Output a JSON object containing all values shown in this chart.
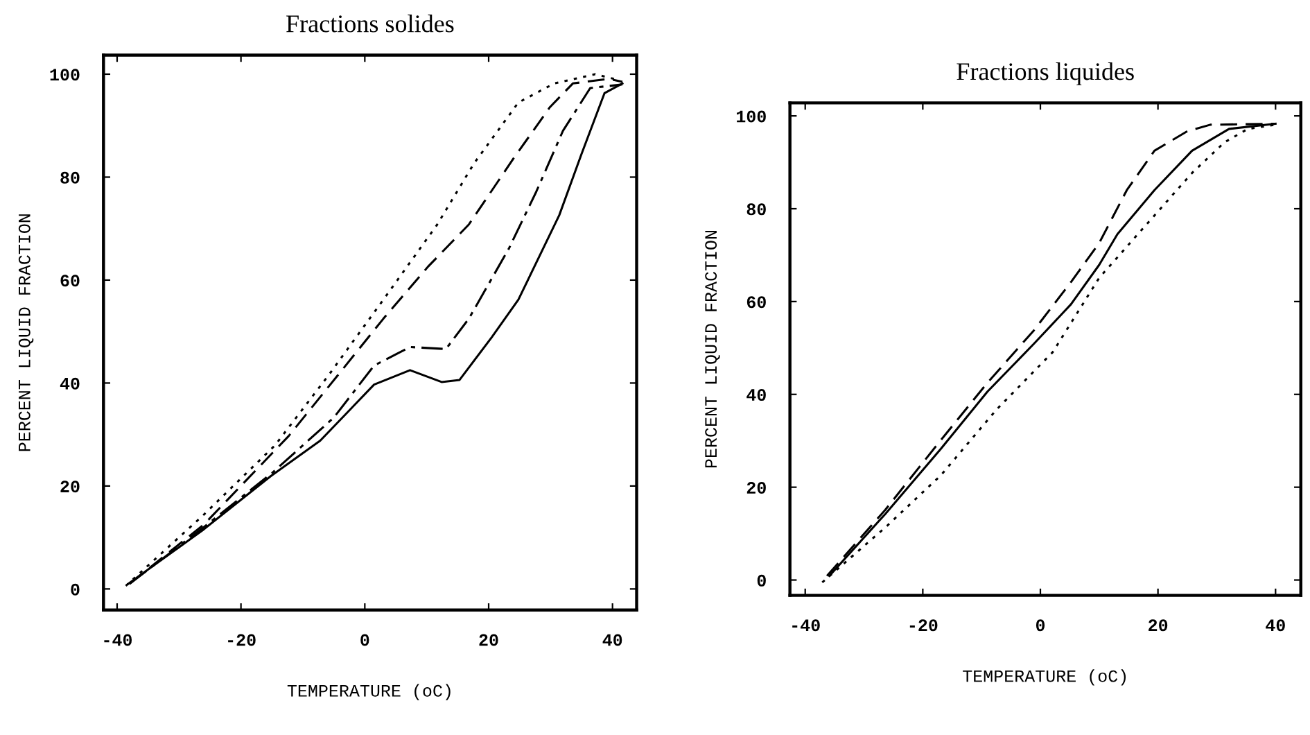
{
  "chart_data": [
    {
      "type": "line",
      "title": "Fractions solides",
      "xlabel": "TEMPERATURE (oC)",
      "ylabel": "PERCENT LIQUID FRACTION",
      "xlim": [
        -42.2,
        43.9
      ],
      "ylim": [
        -4.1,
        103.7
      ],
      "xticks": [
        -40,
        -20,
        0,
        20,
        40
      ],
      "yticks": [
        0,
        20,
        40,
        60,
        80,
        100
      ],
      "grid": false,
      "series": [
        {
          "color": "#000000",
          "line_style": "solid",
          "x": [
            -38.2,
            -26.2,
            -15.2,
            -7.2,
            1.5,
            7.3,
            12.4,
            15.3,
            20.5,
            24.8,
            31.4,
            35,
            38.7,
            41.6
          ],
          "values": [
            1,
            11.4,
            21.9,
            28.8,
            39.7,
            42.5,
            40.2,
            40.6,
            48.9,
            56.2,
            72.6,
            84.5,
            96.3,
            98.2
          ]
        },
        {
          "color": "#000000",
          "line_style": "dashdot",
          "x": [
            -38,
            -26,
            -15,
            -5,
            1.5,
            7.3,
            13.1,
            16.8,
            23.3,
            27.7,
            32,
            36.4,
            41.6
          ],
          "values": [
            1,
            12,
            22.5,
            33.3,
            43.4,
            47,
            46.6,
            52.5,
            66.2,
            77.2,
            89,
            97.3,
            98
          ]
        },
        {
          "color": "#000000",
          "line_style": "dashed",
          "x": [
            -38,
            -26,
            -12.3,
            -4.3,
            3,
            10.2,
            16.8,
            24,
            29.9,
            33.6,
            39.4,
            41.6
          ],
          "values": [
            1,
            12.5,
            29.7,
            41.6,
            52.5,
            62.6,
            70.8,
            83.6,
            93.6,
            98.2,
            99.1,
            98.5
          ]
        },
        {
          "color": "#000000",
          "line_style": "dotted",
          "x": [
            -38.6,
            -26.2,
            -14.5,
            -5.8,
            3,
            11.7,
            17.6,
            24.8,
            30.6,
            37.2,
            41.2
          ],
          "values": [
            0.6,
            14.2,
            27.9,
            41.6,
            56.2,
            70.8,
            82.6,
            94.5,
            98.2,
            100,
            98.8
          ]
        }
      ]
    },
    {
      "type": "line",
      "title": "Fractions liquides",
      "xlabel": "TEMPERATURE (oC)",
      "ylabel": "PERCENT LIQUID FRACTION",
      "xlim": [
        -42.6,
        44.3
      ],
      "ylim": [
        -3.3,
        102.8
      ],
      "xticks": [
        -40,
        -20,
        0,
        20,
        40
      ],
      "yticks": [
        0,
        20,
        40,
        60,
        80,
        100
      ],
      "grid": false,
      "series": [
        {
          "color": "#000000",
          "line_style": "solid",
          "x": [
            -35.9,
            -26.4,
            -16.9,
            -9,
            -1.1,
            5.2,
            10,
            13.1,
            19.4,
            25.8,
            32.1,
            40
          ],
          "values": [
            0.9,
            14.2,
            28.3,
            40.6,
            50.9,
            59.4,
            67.9,
            74.5,
            84,
            92.5,
            97.2,
            98.3
          ]
        },
        {
          "color": "#000000",
          "line_style": "dashed",
          "x": [
            -36.3,
            -26.4,
            -16.9,
            -9,
            -1.1,
            5.2,
            10,
            14.7,
            19.4,
            25,
            28.9,
            40
          ],
          "values": [
            0.9,
            15.1,
            30.2,
            42.5,
            53.8,
            64.2,
            72.6,
            84,
            92.5,
            96.7,
            98.1,
            98.3
          ]
        },
        {
          "color": "#000000",
          "line_style": "dotted",
          "x": [
            -37.1,
            -26.4,
            -16.9,
            -7.4,
            2.1,
            10,
            17.9,
            25.8,
            31.3,
            35.3,
            40
          ],
          "values": [
            -0.5,
            11.3,
            22.6,
            36.8,
            49.1,
            65.1,
            76.4,
            87.7,
            94.3,
            97.2,
            98.1
          ]
        }
      ]
    }
  ]
}
